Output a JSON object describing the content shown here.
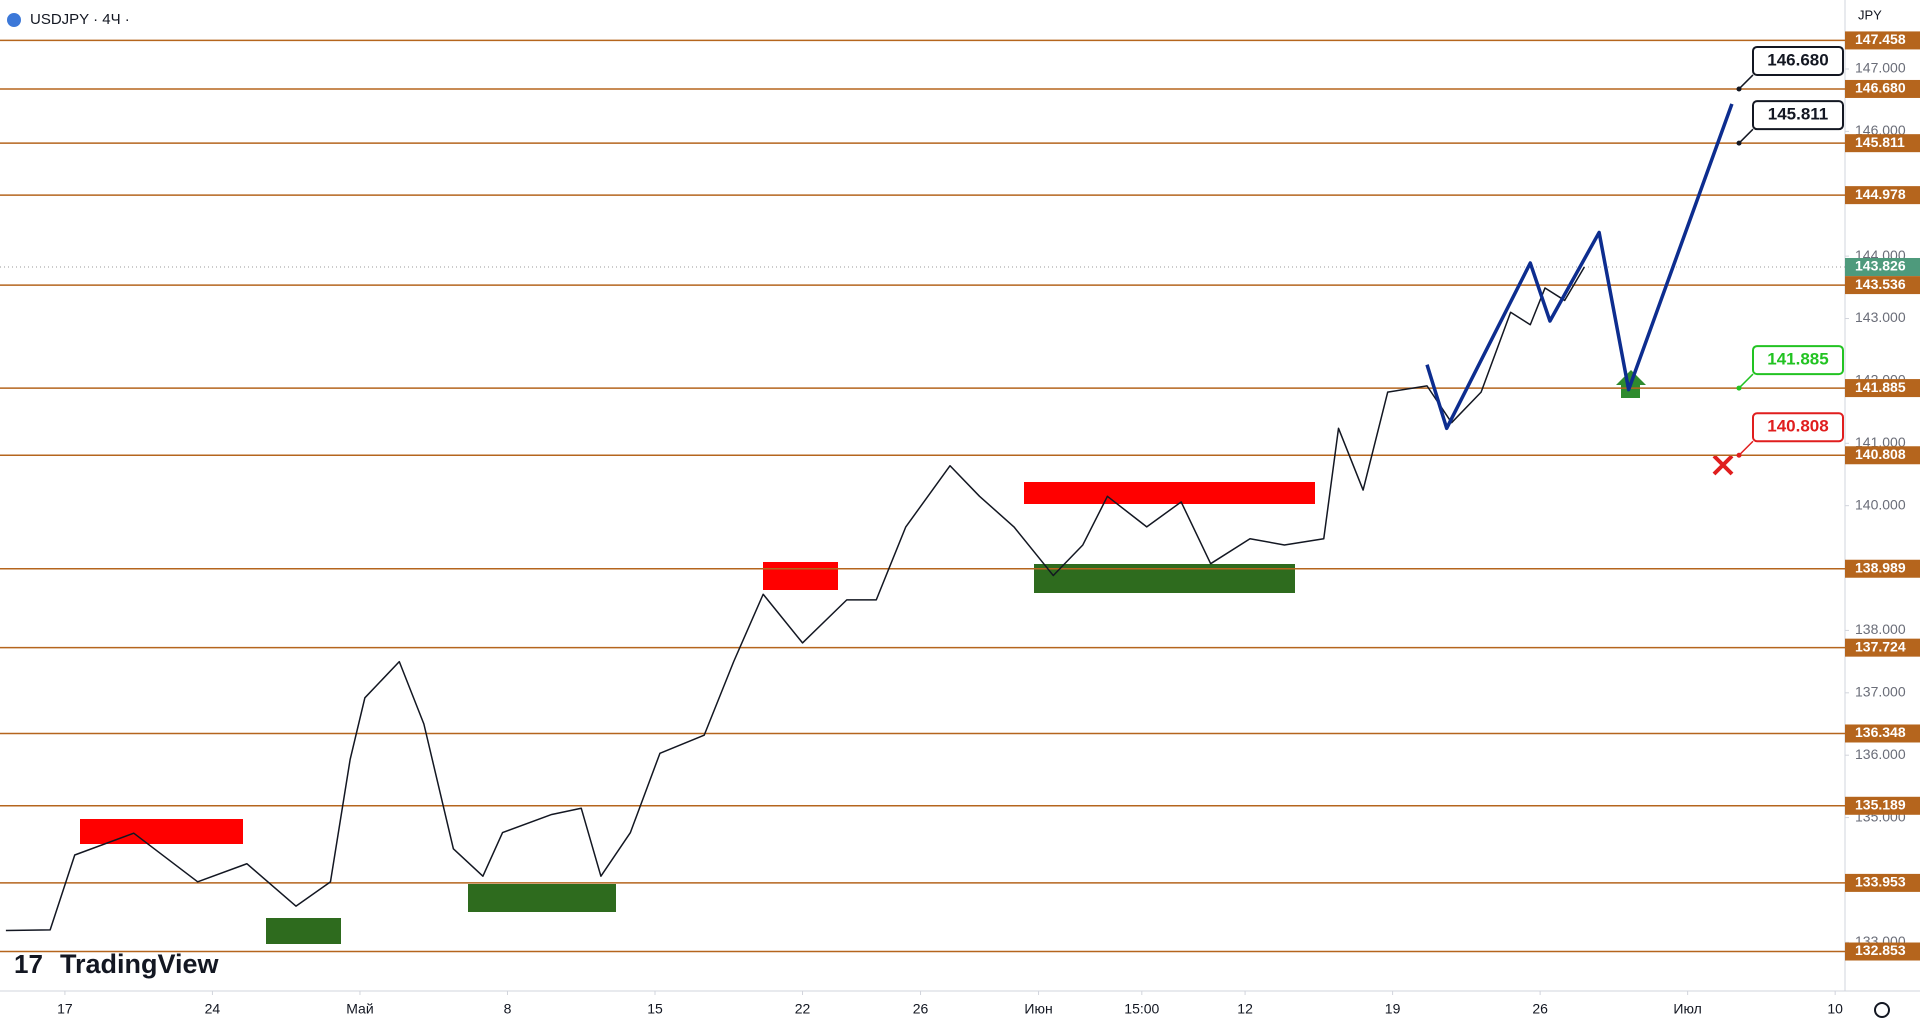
{
  "chart_data": {
    "type": "line",
    "title": "USDJPY · 4Ч ·",
    "currency": "JPY",
    "brand": "TradingView",
    "xlim": [
      -13.2,
      362
    ],
    "xticks": [
      {
        "value": 0,
        "label": "17"
      },
      {
        "value": 30,
        "label": "24"
      },
      {
        "value": 60,
        "label": "Май"
      },
      {
        "value": 90,
        "label": "8"
      },
      {
        "value": 120,
        "label": "15"
      },
      {
        "value": 150,
        "label": "22"
      },
      {
        "value": 174,
        "label": "26"
      },
      {
        "value": 198,
        "label": "Июн"
      },
      {
        "value": 219,
        "label": "15:00"
      },
      {
        "value": 240,
        "label": "12"
      },
      {
        "value": 270,
        "label": "19"
      },
      {
        "value": 300,
        "label": "26"
      },
      {
        "value": 330,
        "label": "Июл"
      },
      {
        "value": 360,
        "label": "10"
      }
    ],
    "ylim": [
      132.22,
      148.106
    ],
    "yticks": [
      {
        "value": 147,
        "label": "147.000"
      },
      {
        "value": 146,
        "label": "146.000"
      },
      {
        "value": 144,
        "label": "144.000"
      },
      {
        "value": 143,
        "label": "143.000"
      },
      {
        "value": 142,
        "label": "142.000"
      },
      {
        "value": 141,
        "label": "141.000"
      },
      {
        "value": 140,
        "label": "140.000"
      },
      {
        "value": 138,
        "label": "138.000"
      },
      {
        "value": 137,
        "label": "137.000"
      },
      {
        "value": 136,
        "label": "136.000"
      },
      {
        "value": 135,
        "label": "135.000"
      },
      {
        "value": 133,
        "label": "133.000"
      }
    ],
    "series": [
      {
        "color": "#131722",
        "x": [
          -12,
          -3,
          2,
          14,
          27,
          37,
          47,
          54,
          58,
          61,
          68,
          73,
          79,
          85,
          89,
          99,
          105,
          109,
          115,
          121,
          130,
          136,
          142,
          150,
          159,
          165,
          171,
          180,
          186,
          193,
          201,
          207,
          212,
          220,
          227,
          233,
          241,
          248,
          256,
          259,
          264,
          269,
          277,
          282,
          288,
          294,
          298,
          301,
          305,
          309
        ],
        "values": [
          133.19,
          133.2,
          134.4,
          134.75,
          133.97,
          134.26,
          133.58,
          133.97,
          135.93,
          136.92,
          137.5,
          136.5,
          134.5,
          134.06,
          134.76,
          135.05,
          135.15,
          134.06,
          134.76,
          136.03,
          136.32,
          137.5,
          138.58,
          137.8,
          138.49,
          138.49,
          139.66,
          140.64,
          140.15,
          139.66,
          138.88,
          139.37,
          140.15,
          139.66,
          140.06,
          139.07,
          139.47,
          139.37,
          139.47,
          141.24,
          140.25,
          141.82,
          141.92,
          141.33,
          141.82,
          143.1,
          142.9,
          143.49,
          143.29,
          143.826
        ]
      },
      {
        "color": "#0d2d8f",
        "x": [
          277,
          281,
          298,
          302,
          312,
          318,
          339
        ],
        "values": [
          142.26,
          141.24,
          143.89,
          142.96,
          144.38,
          141.86,
          146.44
        ]
      }
    ],
    "level_color": "#b5651d",
    "levels": [
      {
        "value": 147.458,
        "label": "147.458"
      },
      {
        "value": 146.68,
        "label": "146.680"
      },
      {
        "value": 145.811,
        "label": "145.811"
      },
      {
        "value": 144.978,
        "label": "144.978"
      },
      {
        "value": 143.536,
        "label": "143.536"
      },
      {
        "value": 141.885,
        "label": "141.885"
      },
      {
        "value": 140.808,
        "label": "140.808"
      },
      {
        "value": 138.989,
        "label": "138.989"
      },
      {
        "value": 137.724,
        "label": "137.724"
      },
      {
        "value": 136.348,
        "label": "136.348"
      },
      {
        "value": 135.189,
        "label": "135.189"
      },
      {
        "value": 133.953,
        "label": "133.953"
      },
      {
        "value": 132.853,
        "label": "132.853"
      }
    ],
    "last_price": {
      "value": 143.826,
      "label": "143.826",
      "color": "#4e9a7c"
    },
    "callouts": [
      {
        "value": 146.68,
        "label": "146.680",
        "color": "#131722"
      },
      {
        "value": 145.811,
        "label": "145.811",
        "color": "#131722"
      },
      {
        "value": 141.885,
        "label": "141.885",
        "color": "#22c322"
      },
      {
        "value": 140.808,
        "label": "140.808",
        "color": "#e01e1e"
      }
    ]
  }
}
